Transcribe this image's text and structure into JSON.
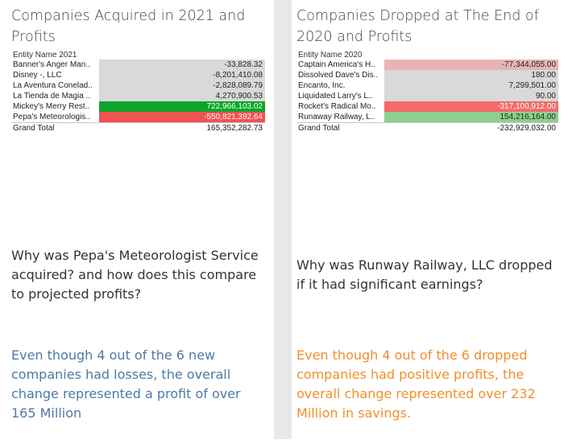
{
  "left": {
    "title": "Companies Acquired in 2021 and Profits",
    "table_header": "Entity Name 2021",
    "rows": [
      {
        "name": "Banner's Anger Man..",
        "value": "-33,828.32"
      },
      {
        "name": "Disney -, LLC",
        "value": "-8,201,410.08"
      },
      {
        "name": "La Aventura Conelad..",
        "value": "-2,828,089.79"
      },
      {
        "name": "La Tienda de Magia ..",
        "value": "4,270,900.53"
      },
      {
        "name": "Mickey's Merry Rest..",
        "value": "722,966,103.02"
      },
      {
        "name": "Pepa's Meteorologis..",
        "value": "-550,821,392.64"
      }
    ],
    "total_label": "Grand Total",
    "total_value": "165,352,282.73",
    "question": "Why was Pepa's Meteorologist Service acquired? and how does this compare to projected profits?",
    "answer": "Even though 4 out of the 6 new companies had losses, the overall change represented a profit of over 165 Million"
  },
  "right": {
    "title": "Companies Dropped at The End of 2020 and Profits",
    "table_header": "Entity Name 2020",
    "rows": [
      {
        "name": "Captain America's H..",
        "value": "-77,344,055.00"
      },
      {
        "name": "Dissolved Dave's Dis..",
        "value": "180.00"
      },
      {
        "name": "Encanto, Inc.",
        "value": "7,299,501.00"
      },
      {
        "name": "Liquidated Larry's L..",
        "value": "90.00"
      },
      {
        "name": "Rocket's Radical Mo..",
        "value": "-317,100,912.00"
      },
      {
        "name": "Runaway Railway, L..",
        "value": "154,216,164.00"
      }
    ],
    "total_label": "Grand Total",
    "total_value": "-232,929,032.00",
    "question": "Why was Runway Railway, LLC dropped if it had significant earnings?",
    "answer": "Even though 4 out of the 6 dropped companies had positive profits, the overall change represented over 232 Million in savings."
  },
  "colors": {
    "neutral_fill": "#d9d9d9",
    "high_profit_fill": "#0ba629",
    "high_loss_fill": "#f05252",
    "moderate_loss_fill": "#e8b4b4",
    "moderate_profit_fill": "#8ed08d",
    "left_answer_text": "#4e79a7",
    "right_answer_text": "#f28e2b"
  }
}
